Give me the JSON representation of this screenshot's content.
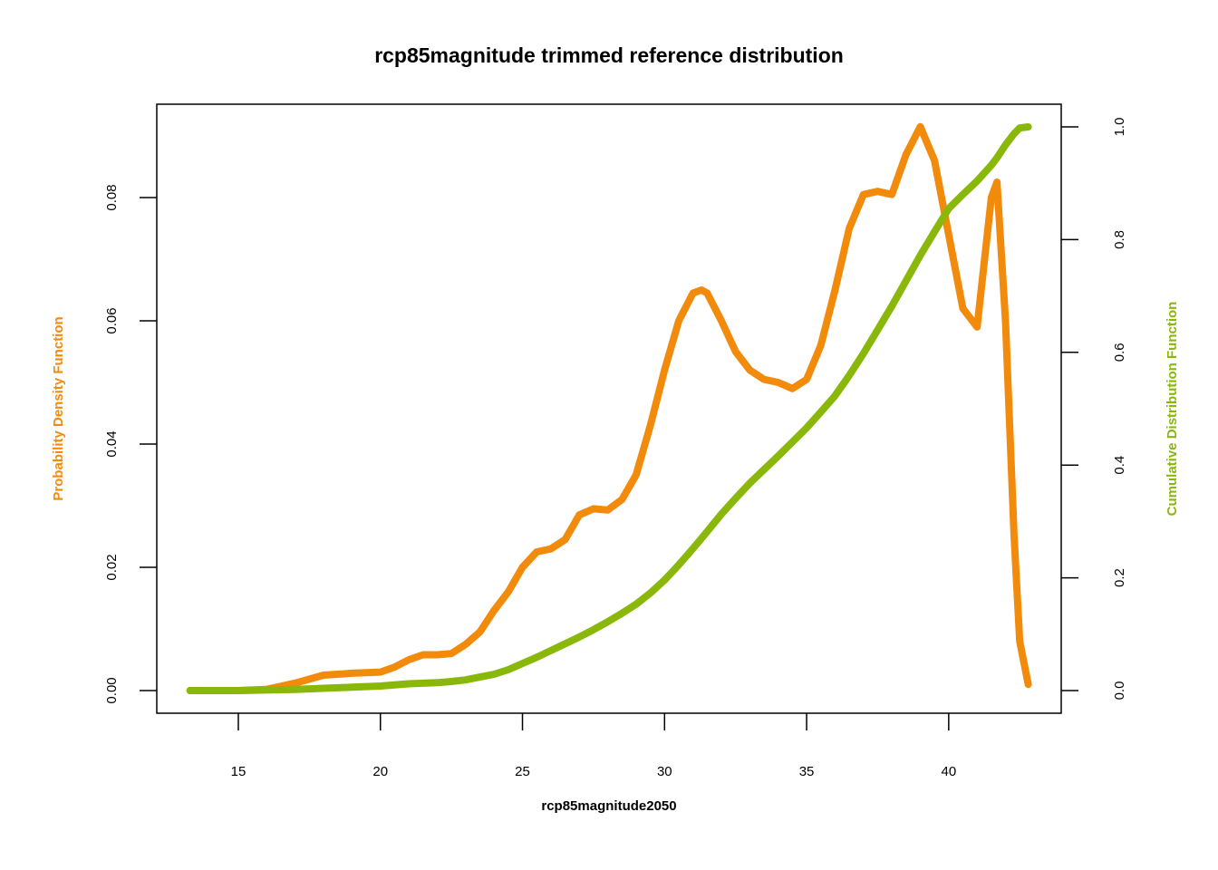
{
  "chart_data": {
    "type": "line",
    "title": "rcp85magnitude trimmed reference distribution",
    "x_label": "rcp85magnitude2050",
    "y_label": "Probability Density Function",
    "y2_label": "Cumulative Distribution Function",
    "y_label_color": "#f28a0c",
    "y2_label_color": "#8ab80a",
    "x": [
      13.3,
      15,
      16,
      17,
      18,
      19,
      20,
      20.5,
      21,
      21.5,
      22,
      22.5,
      23,
      23.5,
      24,
      24.5,
      25,
      25.5,
      26,
      26.5,
      27,
      27.5,
      28,
      28.5,
      29,
      29.5,
      30,
      30.5,
      31,
      31.3,
      31.5,
      32,
      32.5,
      33,
      33.5,
      34,
      34.5,
      35,
      35.5,
      36,
      36.5,
      37,
      37.5,
      38,
      38.5,
      39,
      39.5,
      40,
      40.5,
      41,
      41.5,
      41.7,
      42,
      42.3,
      42.5,
      42.8
    ],
    "series": [
      {
        "name": "Probability Density Function",
        "color": "#f28a0c",
        "axis": "y",
        "values": [
          0,
          0,
          0.0002,
          0.0012,
          0.0025,
          0.0028,
          0.003,
          0.0038,
          0.005,
          0.0058,
          0.0058,
          0.006,
          0.0075,
          0.0095,
          0.013,
          0.016,
          0.02,
          0.0225,
          0.023,
          0.0245,
          0.0285,
          0.0295,
          0.0293,
          0.031,
          0.035,
          0.043,
          0.052,
          0.06,
          0.0645,
          0.065,
          0.0645,
          0.06,
          0.055,
          0.052,
          0.0505,
          0.05,
          0.049,
          0.0505,
          0.056,
          0.065,
          0.075,
          0.0805,
          0.081,
          0.0805,
          0.087,
          0.0915,
          0.086,
          0.074,
          0.062,
          0.059,
          0.08,
          0.0825,
          0.06,
          0.025,
          0.008,
          0.001
        ]
      },
      {
        "name": "Cumulative Distribution Function",
        "color": "#8ab80a",
        "axis": "y2",
        "values": [
          0,
          0,
          0.001,
          0.002,
          0.004,
          0.006,
          0.008,
          0.01,
          0.012,
          0.013,
          0.014,
          0.016,
          0.019,
          0.024,
          0.029,
          0.037,
          0.048,
          0.059,
          0.071,
          0.083,
          0.095,
          0.108,
          0.122,
          0.137,
          0.153,
          0.173,
          0.196,
          0.223,
          0.252,
          0.27,
          0.282,
          0.313,
          0.341,
          0.368,
          0.392,
          0.416,
          0.441,
          0.466,
          0.494,
          0.523,
          0.559,
          0.598,
          0.64,
          0.682,
          0.727,
          0.772,
          0.814,
          0.855,
          0.88,
          0.904,
          0.932,
          0.945,
          0.968,
          0.988,
          0.998,
          1.0
        ]
      }
    ],
    "xlim": [
      12.13,
      43.96
    ],
    "xticks": [
      15,
      20,
      25,
      30,
      35,
      40
    ],
    "ylim": [
      -0.00368,
      0.09515
    ],
    "yticks": [
      {
        "value": 0,
        "label": "0.00"
      },
      {
        "value": 0.02,
        "label": "0.02"
      },
      {
        "value": 0.04,
        "label": "0.04"
      },
      {
        "value": 0.06,
        "label": "0.06"
      },
      {
        "value": 0.08,
        "label": "0.08"
      }
    ],
    "y2lim": [
      -0.0402,
      1.0402
    ],
    "y2ticks": [
      {
        "value": 0,
        "label": "0.0"
      },
      {
        "value": 0.2,
        "label": "0.2"
      },
      {
        "value": 0.4,
        "label": "0.4"
      },
      {
        "value": 0.6,
        "label": "0.6"
      },
      {
        "value": 0.8,
        "label": "0.8"
      },
      {
        "value": 1,
        "label": "1.0"
      }
    ]
  }
}
